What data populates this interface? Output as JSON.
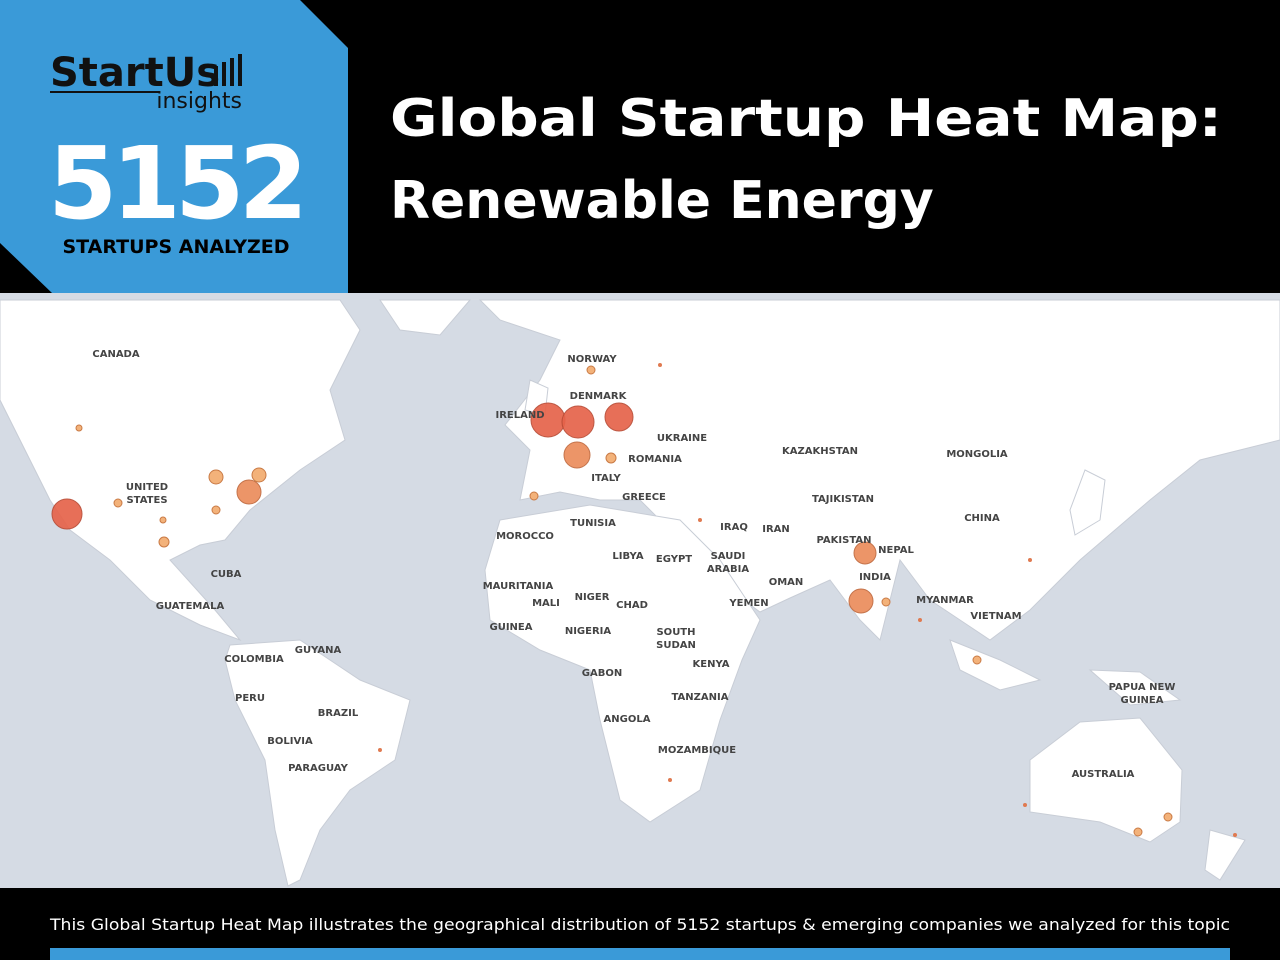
{
  "header": {
    "logo": {
      "name": "StartUs",
      "tagline": "insights"
    },
    "stat": {
      "value": 5152,
      "label": "STARTUPS ANALYZED"
    },
    "title": [
      "Global Startup Heat Map:",
      "Renewable Energy"
    ]
  },
  "map": {
    "labels": [
      "CANADA",
      "NORWAY",
      "DENMARK",
      "IRELAND",
      "UKRAINE",
      "KAZAKHSTAN",
      "MONGOLIA",
      "ROMANIA",
      "UNITED",
      "STATES",
      "ITALY",
      "GREECE",
      "TAJIKISTAN",
      "CHINA",
      "TUNISIA",
      "IRAQ",
      "IRAN",
      "MOROCCO",
      "PAKISTAN",
      "NEPAL",
      "LIBYA",
      "EGYPT",
      "SAUDI",
      "ARABIA",
      "INDIA",
      "CUBA",
      "OMAN",
      "MAURITANIA",
      "MALI",
      "NIGER",
      "CHAD",
      "YEMEN",
      "MYANMAR",
      "GUATEMALA",
      "VIETNAM",
      "GUINEA",
      "NIGERIA",
      "SOUTH",
      "SUDAN",
      "GUYANA",
      "COLOMBIA",
      "KENYA",
      "GABON",
      "PAPUA NEW",
      "GUINEA",
      "TANZANIA",
      "PERU",
      "BRAZIL",
      "ANGOLA",
      "BOLIVIA",
      "MOZAMBIQUE",
      "PARAGUAY",
      "AUSTRALIA"
    ]
  },
  "footer": {
    "caption": "This Global Startup Heat Map illustrates the geographical distribution of 5152 startups & emerging companies we analyzed for this topic"
  }
}
